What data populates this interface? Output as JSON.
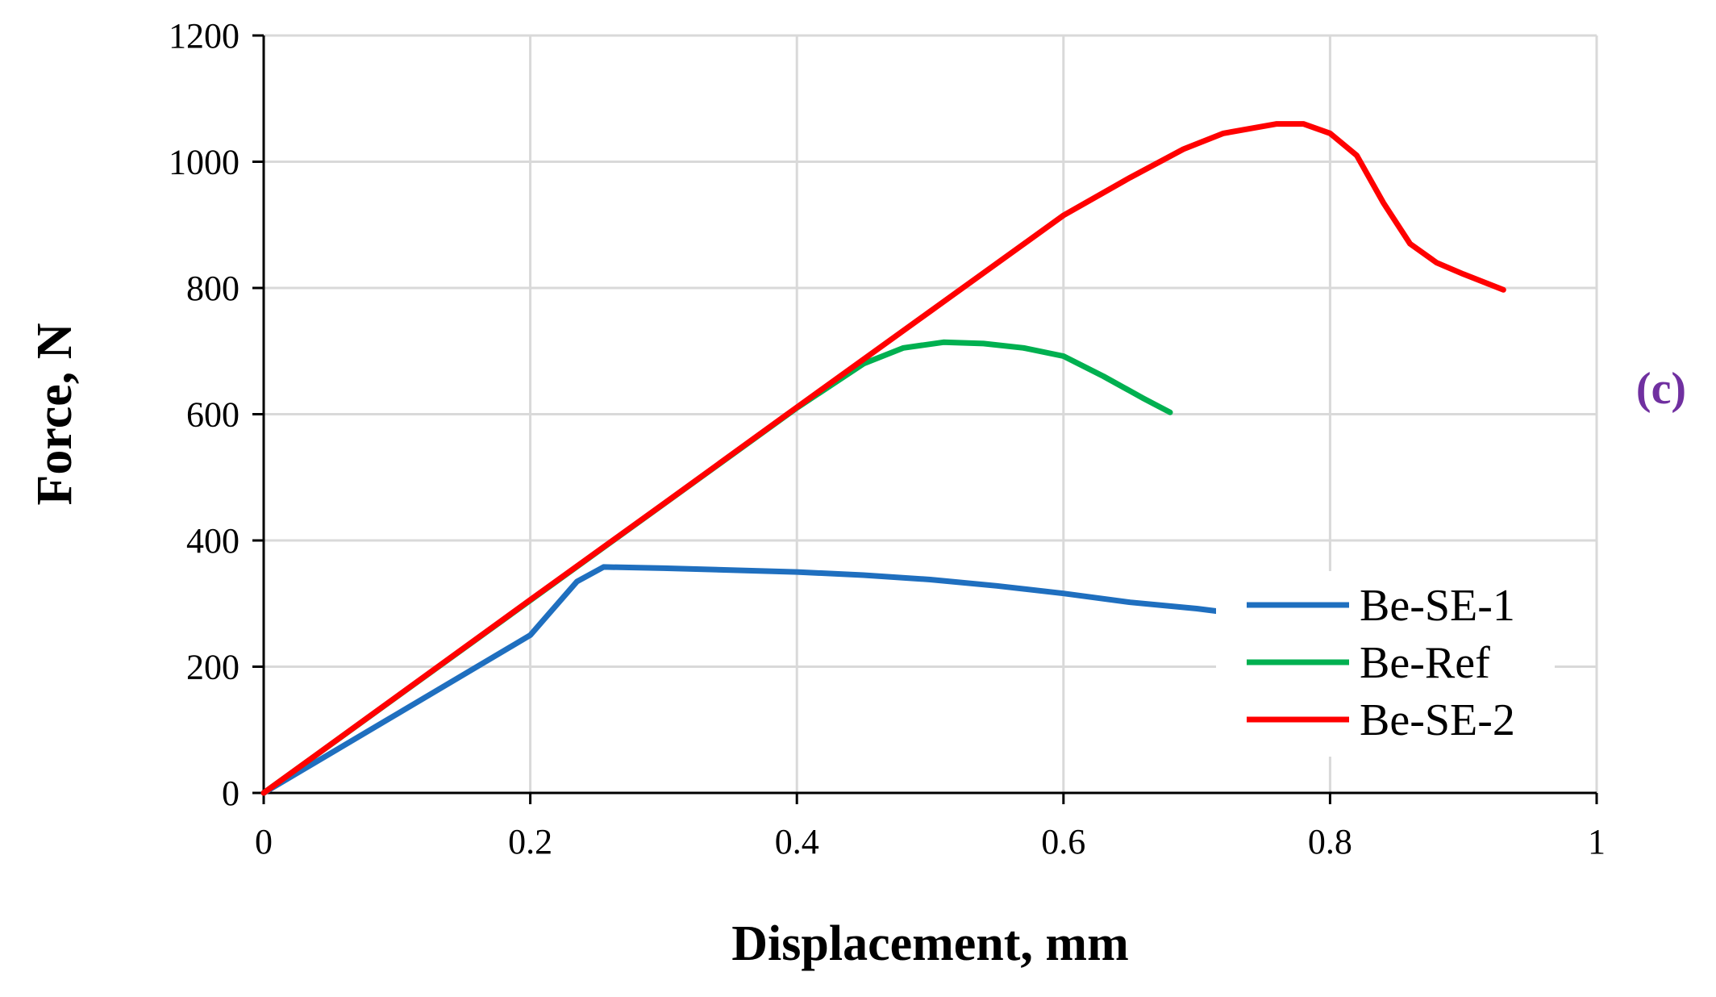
{
  "chart_data": {
    "type": "line",
    "xlabel": "Displacement, mm",
    "ylabel": "Force, N",
    "xlim": [
      0,
      1
    ],
    "ylim": [
      0,
      1200
    ],
    "x_ticks": [
      "0",
      "0.2",
      "0.4",
      "0.6",
      "0.8",
      "1"
    ],
    "y_ticks": [
      "0",
      "200",
      "400",
      "600",
      "800",
      "1000",
      "1200"
    ],
    "grid": true,
    "legend_position": "bottom-right",
    "series": [
      {
        "name": "Be-SE-1",
        "color": "#1f6fbf",
        "points": [
          [
            0,
            0
          ],
          [
            0.1,
            125
          ],
          [
            0.2,
            250
          ],
          [
            0.235,
            335
          ],
          [
            0.255,
            358
          ],
          [
            0.3,
            356
          ],
          [
            0.4,
            350
          ],
          [
            0.45,
            345
          ],
          [
            0.5,
            338
          ],
          [
            0.55,
            328
          ],
          [
            0.6,
            316
          ],
          [
            0.65,
            302
          ],
          [
            0.7,
            292
          ],
          [
            0.715,
            288
          ]
        ]
      },
      {
        "name": "Be-Ref",
        "color": "#00b050",
        "points": [
          [
            0,
            0
          ],
          [
            0.2,
            305
          ],
          [
            0.4,
            610
          ],
          [
            0.43,
            652
          ],
          [
            0.45,
            680
          ],
          [
            0.48,
            705
          ],
          [
            0.51,
            714
          ],
          [
            0.54,
            712
          ],
          [
            0.57,
            705
          ],
          [
            0.6,
            692
          ],
          [
            0.63,
            660
          ],
          [
            0.66,
            625
          ],
          [
            0.68,
            603
          ]
        ]
      },
      {
        "name": "Be-SE-2",
        "color": "#ff0000",
        "points": [
          [
            0,
            0
          ],
          [
            0.1,
            153
          ],
          [
            0.2,
            306
          ],
          [
            0.3,
            458
          ],
          [
            0.4,
            611
          ],
          [
            0.5,
            763
          ],
          [
            0.6,
            915
          ],
          [
            0.65,
            975
          ],
          [
            0.69,
            1020
          ],
          [
            0.72,
            1045
          ],
          [
            0.76,
            1060
          ],
          [
            0.78,
            1060
          ],
          [
            0.8,
            1045
          ],
          [
            0.82,
            1010
          ],
          [
            0.84,
            935
          ],
          [
            0.86,
            870
          ],
          [
            0.88,
            840
          ],
          [
            0.9,
            822
          ],
          [
            0.93,
            797
          ]
        ]
      }
    ]
  },
  "panel_label": "(c)",
  "panel_label_color": "#7030a0"
}
